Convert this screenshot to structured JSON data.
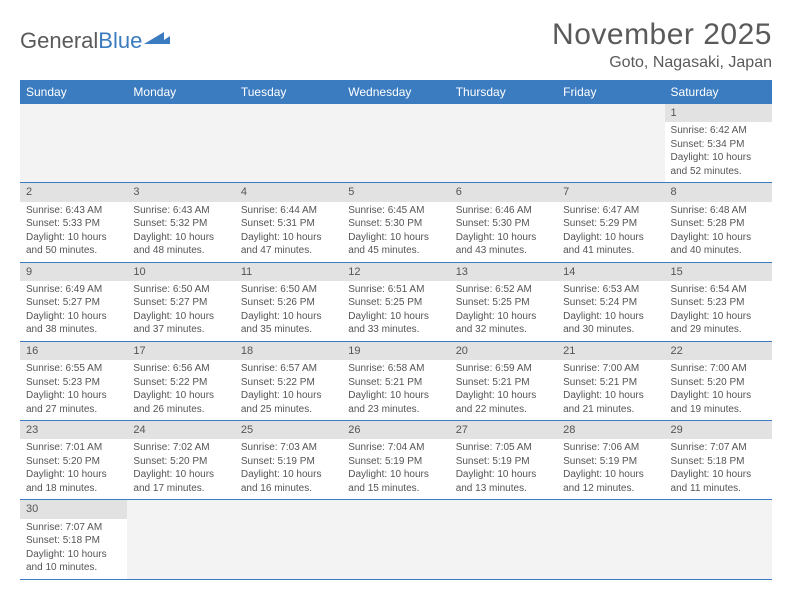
{
  "logo": {
    "part1": "General",
    "part2": "Blue"
  },
  "title": "November 2025",
  "location": "Goto, Nagasaki, Japan",
  "colors": {
    "header_bg": "#3b7bbf",
    "header_text": "#ffffff",
    "daynum_bg": "#e2e2e2",
    "cell_border": "#3b7bbf",
    "text": "#555555",
    "empty_bg": "#f3f3f3"
  },
  "columns": [
    "Sunday",
    "Monday",
    "Tuesday",
    "Wednesday",
    "Thursday",
    "Friday",
    "Saturday"
  ],
  "weeks": [
    [
      null,
      null,
      null,
      null,
      null,
      null,
      {
        "n": "1",
        "sr": "6:42 AM",
        "ss": "5:34 PM",
        "dl": "10 hours and 52 minutes."
      }
    ],
    [
      {
        "n": "2",
        "sr": "6:43 AM",
        "ss": "5:33 PM",
        "dl": "10 hours and 50 minutes."
      },
      {
        "n": "3",
        "sr": "6:43 AM",
        "ss": "5:32 PM",
        "dl": "10 hours and 48 minutes."
      },
      {
        "n": "4",
        "sr": "6:44 AM",
        "ss": "5:31 PM",
        "dl": "10 hours and 47 minutes."
      },
      {
        "n": "5",
        "sr": "6:45 AM",
        "ss": "5:30 PM",
        "dl": "10 hours and 45 minutes."
      },
      {
        "n": "6",
        "sr": "6:46 AM",
        "ss": "5:30 PM",
        "dl": "10 hours and 43 minutes."
      },
      {
        "n": "7",
        "sr": "6:47 AM",
        "ss": "5:29 PM",
        "dl": "10 hours and 41 minutes."
      },
      {
        "n": "8",
        "sr": "6:48 AM",
        "ss": "5:28 PM",
        "dl": "10 hours and 40 minutes."
      }
    ],
    [
      {
        "n": "9",
        "sr": "6:49 AM",
        "ss": "5:27 PM",
        "dl": "10 hours and 38 minutes."
      },
      {
        "n": "10",
        "sr": "6:50 AM",
        "ss": "5:27 PM",
        "dl": "10 hours and 37 minutes."
      },
      {
        "n": "11",
        "sr": "6:50 AM",
        "ss": "5:26 PM",
        "dl": "10 hours and 35 minutes."
      },
      {
        "n": "12",
        "sr": "6:51 AM",
        "ss": "5:25 PM",
        "dl": "10 hours and 33 minutes."
      },
      {
        "n": "13",
        "sr": "6:52 AM",
        "ss": "5:25 PM",
        "dl": "10 hours and 32 minutes."
      },
      {
        "n": "14",
        "sr": "6:53 AM",
        "ss": "5:24 PM",
        "dl": "10 hours and 30 minutes."
      },
      {
        "n": "15",
        "sr": "6:54 AM",
        "ss": "5:23 PM",
        "dl": "10 hours and 29 minutes."
      }
    ],
    [
      {
        "n": "16",
        "sr": "6:55 AM",
        "ss": "5:23 PM",
        "dl": "10 hours and 27 minutes."
      },
      {
        "n": "17",
        "sr": "6:56 AM",
        "ss": "5:22 PM",
        "dl": "10 hours and 26 minutes."
      },
      {
        "n": "18",
        "sr": "6:57 AM",
        "ss": "5:22 PM",
        "dl": "10 hours and 25 minutes."
      },
      {
        "n": "19",
        "sr": "6:58 AM",
        "ss": "5:21 PM",
        "dl": "10 hours and 23 minutes."
      },
      {
        "n": "20",
        "sr": "6:59 AM",
        "ss": "5:21 PM",
        "dl": "10 hours and 22 minutes."
      },
      {
        "n": "21",
        "sr": "7:00 AM",
        "ss": "5:21 PM",
        "dl": "10 hours and 21 minutes."
      },
      {
        "n": "22",
        "sr": "7:00 AM",
        "ss": "5:20 PM",
        "dl": "10 hours and 19 minutes."
      }
    ],
    [
      {
        "n": "23",
        "sr": "7:01 AM",
        "ss": "5:20 PM",
        "dl": "10 hours and 18 minutes."
      },
      {
        "n": "24",
        "sr": "7:02 AM",
        "ss": "5:20 PM",
        "dl": "10 hours and 17 minutes."
      },
      {
        "n": "25",
        "sr": "7:03 AM",
        "ss": "5:19 PM",
        "dl": "10 hours and 16 minutes."
      },
      {
        "n": "26",
        "sr": "7:04 AM",
        "ss": "5:19 PM",
        "dl": "10 hours and 15 minutes."
      },
      {
        "n": "27",
        "sr": "7:05 AM",
        "ss": "5:19 PM",
        "dl": "10 hours and 13 minutes."
      },
      {
        "n": "28",
        "sr": "7:06 AM",
        "ss": "5:19 PM",
        "dl": "10 hours and 12 minutes."
      },
      {
        "n": "29",
        "sr": "7:07 AM",
        "ss": "5:18 PM",
        "dl": "10 hours and 11 minutes."
      }
    ],
    [
      {
        "n": "30",
        "sr": "7:07 AM",
        "ss": "5:18 PM",
        "dl": "10 hours and 10 minutes."
      },
      null,
      null,
      null,
      null,
      null,
      null
    ]
  ],
  "labels": {
    "sunrise": "Sunrise:",
    "sunset": "Sunset:",
    "daylight": "Daylight:"
  }
}
